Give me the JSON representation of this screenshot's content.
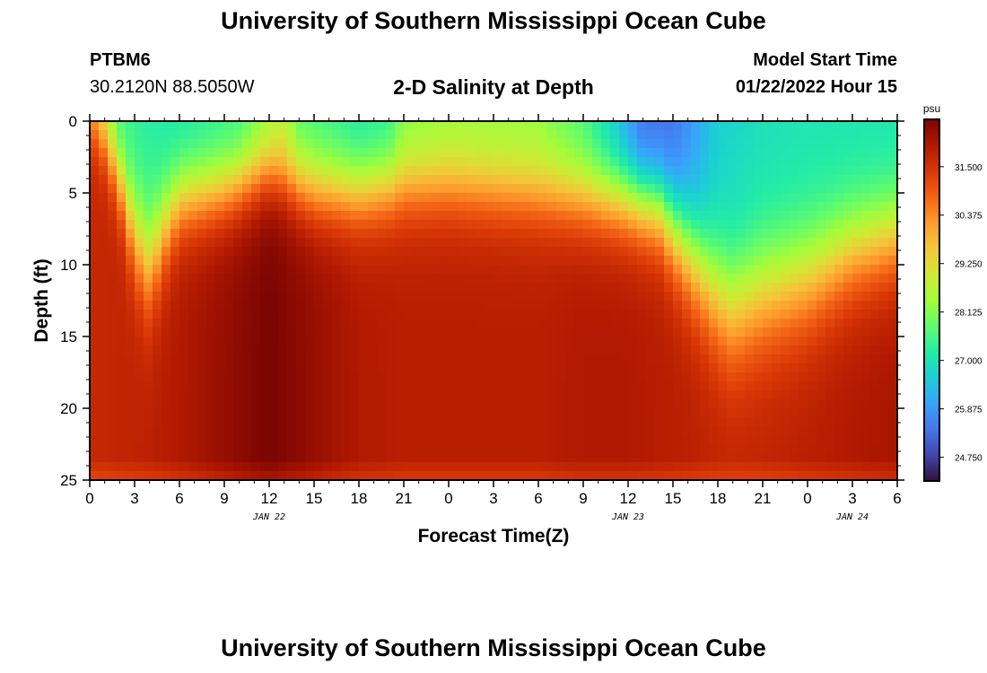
{
  "header": {
    "title": "University of Southern Mississippi Ocean Cube",
    "footer_title": "University of Southern Mississippi Ocean Cube",
    "station_id": "PTBM6",
    "station_coords": "30.2120N  88.5050W",
    "model_start_label": "Model Start Time",
    "model_start_value": "01/22/2022 Hour 15"
  },
  "chart_data": {
    "type": "heatmap",
    "title": "2-D Salinity at Depth",
    "xlabel": "Forecast Time(Z)",
    "ylabel": "Depth (ft)",
    "x_tick_labels": [
      "0",
      "3",
      "6",
      "9",
      "12",
      "15",
      "18",
      "21",
      "0",
      "3",
      "6",
      "9",
      "12",
      "15",
      "18",
      "21",
      "0",
      "3",
      "6"
    ],
    "x_range_hours": [
      0,
      54
    ],
    "date_labels": [
      {
        "label": "JAN 22",
        "hour": 12
      },
      {
        "label": "JAN 23",
        "hour": 36
      },
      {
        "label": "JAN 24",
        "hour": 51
      }
    ],
    "y_ticks": [
      0,
      5,
      10,
      15,
      20,
      25
    ],
    "y_range": [
      0,
      25
    ],
    "colorbar": {
      "unit": "psu",
      "ticks": [
        31.5,
        30.375,
        29.25,
        28.125,
        27.0,
        25.875,
        24.75
      ],
      "tick_labels": [
        "31.500",
        "30.375",
        "29.250",
        "28.125",
        "27.000",
        "25.875",
        "24.750"
      ],
      "range": [
        24.2,
        32.6
      ]
    },
    "halocline_depth_ft": [
      {
        "hour": 0,
        "depth": 0.3
      },
      {
        "hour": 1,
        "depth": 1.5
      },
      {
        "hour": 2,
        "depth": 4.0
      },
      {
        "hour": 3,
        "depth": 8.0
      },
      {
        "hour": 4,
        "depth": 10.0
      },
      {
        "hour": 5,
        "depth": 7.5
      },
      {
        "hour": 6,
        "depth": 5.5
      },
      {
        "hour": 9,
        "depth": 4.8
      },
      {
        "hour": 12,
        "depth": 3.5
      },
      {
        "hour": 15,
        "depth": 4.8
      },
      {
        "hour": 18,
        "depth": 5.0
      },
      {
        "hour": 21,
        "depth": 4.5
      },
      {
        "hour": 24,
        "depth": 4.5
      },
      {
        "hour": 30,
        "depth": 5.0
      },
      {
        "hour": 36,
        "depth": 5.5
      },
      {
        "hour": 38,
        "depth": 6.0
      },
      {
        "hour": 40,
        "depth": 9.0
      },
      {
        "hour": 42,
        "depth": 12.0
      },
      {
        "hour": 43,
        "depth": 13.0
      },
      {
        "hour": 45,
        "depth": 12.0
      },
      {
        "hour": 48,
        "depth": 11.0
      },
      {
        "hour": 51,
        "depth": 9.0
      },
      {
        "hour": 54,
        "depth": 8.0
      }
    ],
    "surface_salinity": [
      {
        "hour": 0,
        "value": 29.8
      },
      {
        "hour": 1,
        "value": 28.6
      },
      {
        "hour": 2,
        "value": 27.4
      },
      {
        "hour": 6,
        "value": 27.0
      },
      {
        "hour": 10,
        "value": 27.3
      },
      {
        "hour": 12,
        "value": 28.2
      },
      {
        "hour": 13,
        "value": 28.5
      },
      {
        "hour": 14,
        "value": 27.6
      },
      {
        "hour": 18,
        "value": 27.0
      },
      {
        "hour": 20,
        "value": 27.2
      },
      {
        "hour": 21,
        "value": 28.0
      },
      {
        "hour": 24,
        "value": 28.3
      },
      {
        "hour": 30,
        "value": 28.2
      },
      {
        "hour": 33,
        "value": 27.5
      },
      {
        "hour": 35,
        "value": 26.5
      },
      {
        "hour": 37,
        "value": 25.2
      },
      {
        "hour": 39,
        "value": 25.3
      },
      {
        "hour": 42,
        "value": 26.6
      },
      {
        "hour": 45,
        "value": 26.9
      },
      {
        "hour": 48,
        "value": 27.0
      },
      {
        "hour": 54,
        "value": 27.0
      }
    ],
    "deep_salinity": [
      {
        "hour": 0,
        "value": 31.7
      },
      {
        "hour": 3,
        "value": 31.8
      },
      {
        "hour": 6,
        "value": 32.0
      },
      {
        "hour": 9,
        "value": 32.3
      },
      {
        "hour": 12,
        "value": 32.6
      },
      {
        "hour": 15,
        "value": 32.3
      },
      {
        "hour": 18,
        "value": 32.0
      },
      {
        "hour": 21,
        "value": 31.9
      },
      {
        "hour": 24,
        "value": 31.9
      },
      {
        "hour": 27,
        "value": 31.9
      },
      {
        "hour": 30,
        "value": 31.9
      },
      {
        "hour": 33,
        "value": 32.0
      },
      {
        "hour": 36,
        "value": 32.0
      },
      {
        "hour": 39,
        "value": 31.9
      },
      {
        "hour": 42,
        "value": 31.8
      },
      {
        "hour": 45,
        "value": 31.8
      },
      {
        "hour": 48,
        "value": 31.9
      },
      {
        "hour": 51,
        "value": 32.0
      },
      {
        "hour": 54,
        "value": 32.1
      }
    ]
  },
  "colors": {
    "colormap": [
      "#30123b",
      "#4145ab",
      "#4675ed",
      "#39a2fc",
      "#1bcfd4",
      "#24eca6",
      "#61fc6c",
      "#a4fc3b",
      "#d1e834",
      "#f3c63a",
      "#fe9b2d",
      "#f36315",
      "#d93806",
      "#b11901",
      "#7a0402"
    ]
  }
}
